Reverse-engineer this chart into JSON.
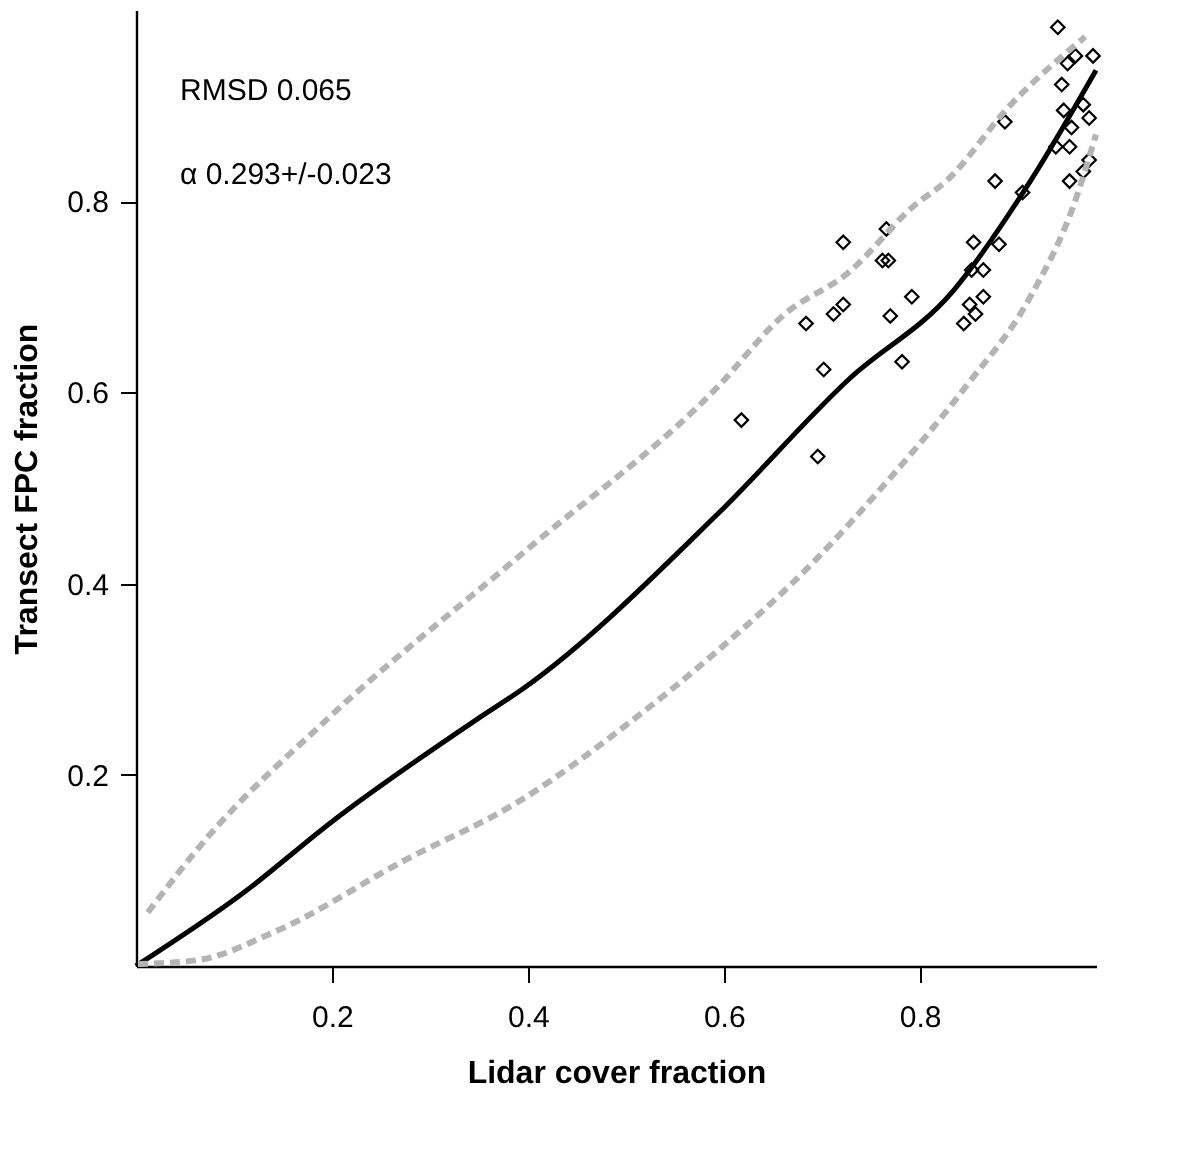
{
  "chart_data": {
    "type": "scatter",
    "xlabel": "Lidar cover fraction",
    "ylabel": "Transect FPC fraction",
    "annotations": [
      "RMSD 0.065",
      "α 0.293+/-0.023"
    ],
    "xlim": [
      0,
      0.98
    ],
    "ylim": [
      0,
      1.0
    ],
    "xticks": [
      0.2,
      0.4,
      0.6,
      0.8
    ],
    "yticks": [
      0.2,
      0.4,
      0.6,
      0.8
    ],
    "grid": false,
    "series": [
      {
        "marker": "diamond",
        "color": "#000000",
        "x": [
          0.722,
          0.766,
          0.762,
          0.768,
          0.684,
          0.712,
          0.722,
          0.77,
          0.792,
          0.782,
          0.702,
          0.618,
          0.696,
          0.855,
          0.881,
          0.853,
          0.865,
          0.865,
          0.851,
          0.857,
          0.845,
          0.877,
          0.905,
          0.953,
          0.941,
          0.951,
          0.959,
          0.977,
          0.945,
          0.947,
          0.967,
          0.973,
          0.887,
          0.955,
          0.939,
          0.953,
          0.967,
          0.973
        ],
        "values": [
          0.757,
          0.771,
          0.738,
          0.738,
          0.672,
          0.682,
          0.692,
          0.68,
          0.7,
          0.632,
          0.624,
          0.571,
          0.533,
          0.757,
          0.755,
          0.728,
          0.728,
          0.7,
          0.692,
          0.682,
          0.672,
          0.821,
          0.809,
          0.821,
          0.982,
          0.944,
          0.952,
          0.952,
          0.922,
          0.895,
          0.901,
          0.887,
          0.883,
          0.877,
          0.857,
          0.857,
          0.831,
          0.843
        ]
      },
      {
        "type": "line",
        "marker": "none",
        "line_style": "solid",
        "color": "#000000",
        "x": [
          0,
          0.109,
          0.2,
          0.348,
          0.395,
          0.594,
          0.728,
          0.834,
          0.913,
          0.98
        ],
        "values": [
          0,
          0.076,
          0.151,
          0.258,
          0.29,
          0.473,
          0.614,
          0.706,
          0.821,
          0.937
        ]
      },
      {
        "type": "line",
        "marker": "none",
        "line_style": "dashed",
        "color": "#b4b4b4",
        "x": [
          0.012,
          0.07,
          0.195,
          0.395,
          0.594,
          0.66,
          0.728,
          0.794,
          0.827,
          0.893,
          0.969
        ],
        "values": [
          0.056,
          0.131,
          0.258,
          0.432,
          0.606,
          0.68,
          0.726,
          0.795,
          0.821,
          0.901,
          0.972
        ]
      },
      {
        "type": "line",
        "marker": "none",
        "line_style": "dashed",
        "color": "#b4b4b4",
        "x": [
          0.002,
          0.062,
          0.142,
          0.275,
          0.389,
          0.508,
          0.594,
          0.694,
          0.76,
          0.847,
          0.913,
          0.959,
          0.98
        ],
        "values": [
          0.002,
          0.006,
          0.036,
          0.111,
          0.171,
          0.258,
          0.33,
          0.425,
          0.499,
          0.606,
          0.7,
          0.801,
          0.87
        ]
      }
    ]
  }
}
